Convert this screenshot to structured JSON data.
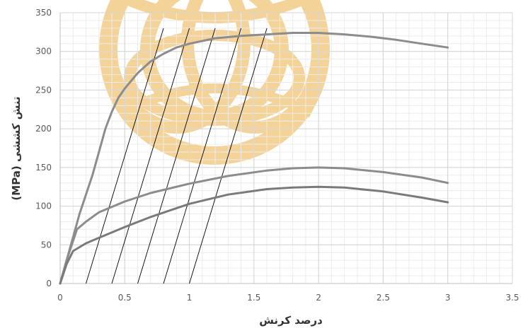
{
  "chart_data": {
    "type": "line",
    "title": "",
    "xlabel": "درصد کرنش",
    "ylabel": "(MPa) تنش کششی",
    "xlim": [
      0,
      3.5
    ],
    "ylim": [
      0,
      350
    ],
    "x_ticks": [
      "0",
      "0.5",
      "1",
      "1.5",
      "2",
      "2.5",
      "3",
      "3.5"
    ],
    "y_ticks": [
      "0",
      "50",
      "100",
      "150",
      "200",
      "250",
      "300",
      "350"
    ],
    "grid": "major and minor",
    "legend": "none",
    "series": [
      {
        "color": "#8c8c8c",
        "points": [
          [
            0,
            0
          ],
          [
            0.05,
            30
          ],
          [
            0.1,
            60
          ],
          [
            0.15,
            90
          ],
          [
            0.2,
            115
          ],
          [
            0.25,
            140
          ],
          [
            0.3,
            170
          ],
          [
            0.35,
            200
          ],
          [
            0.4,
            222
          ],
          [
            0.45,
            240
          ],
          [
            0.5,
            252
          ],
          [
            0.55,
            262
          ],
          [
            0.6,
            272
          ],
          [
            0.7,
            287
          ],
          [
            0.8,
            297
          ],
          [
            0.9,
            305
          ],
          [
            1.0,
            310
          ],
          [
            1.2,
            317
          ],
          [
            1.4,
            320
          ],
          [
            1.6,
            322
          ],
          [
            1.8,
            324
          ],
          [
            2.0,
            324
          ],
          [
            2.2,
            322
          ],
          [
            2.4,
            319
          ],
          [
            2.6,
            315
          ],
          [
            2.8,
            310
          ],
          [
            3.0,
            305
          ]
        ]
      },
      {
        "color": "#8c8c8c",
        "points": [
          [
            0,
            0
          ],
          [
            0.05,
            30
          ],
          [
            0.1,
            55
          ],
          [
            0.13,
            70
          ],
          [
            0.2,
            80
          ],
          [
            0.3,
            92
          ],
          [
            0.5,
            106
          ],
          [
            0.7,
            117
          ],
          [
            1.0,
            129
          ],
          [
            1.3,
            139
          ],
          [
            1.6,
            146
          ],
          [
            1.8,
            149
          ],
          [
            2.0,
            150
          ],
          [
            2.2,
            149
          ],
          [
            2.5,
            144
          ],
          [
            2.8,
            137
          ],
          [
            3.0,
            130
          ]
        ]
      },
      {
        "color": "#7a7a7a",
        "points": [
          [
            0,
            0
          ],
          [
            0.05,
            25
          ],
          [
            0.1,
            42
          ],
          [
            0.2,
            52
          ],
          [
            0.3,
            59
          ],
          [
            0.5,
            73
          ],
          [
            0.7,
            86
          ],
          [
            1.0,
            103
          ],
          [
            1.3,
            115
          ],
          [
            1.6,
            122
          ],
          [
            1.8,
            124
          ],
          [
            2.0,
            125
          ],
          [
            2.2,
            124
          ],
          [
            2.5,
            119
          ],
          [
            2.8,
            111
          ],
          [
            3.0,
            105
          ]
        ]
      }
    ],
    "offset_lines": [
      {
        "x1": 0.2,
        "y1": 0,
        "x2": 0.8,
        "y2": 330
      },
      {
        "x1": 0.4,
        "y1": 0,
        "x2": 1.0,
        "y2": 330
      },
      {
        "x1": 0.6,
        "y1": 0,
        "x2": 1.2,
        "y2": 330
      },
      {
        "x1": 0.8,
        "y1": 0,
        "x2": 1.4,
        "y2": 330
      },
      {
        "x1": 1.0,
        "y1": 0,
        "x2": 1.6,
        "y2": 330
      }
    ],
    "offset_line_color": "#000000",
    "watermark_color": "#f3cf8e"
  }
}
